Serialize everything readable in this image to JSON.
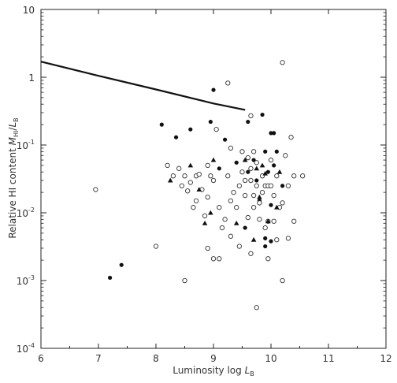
{
  "chart_data": {
    "type": "scatter",
    "title": "",
    "xlabel": {
      "text": "Luminosity log ",
      "var": "L",
      "sub": "B"
    },
    "ylabel": {
      "text": "Relative HI content ",
      "num": "M",
      "num_sub": "HI",
      "sep": "/",
      "den": "L",
      "den_sub": "B"
    },
    "xlim": [
      6,
      12
    ],
    "ylim_log10": [
      -4,
      1
    ],
    "y_scale": "log",
    "x_ticks": [
      "6",
      "7",
      "8",
      "9",
      "10",
      "11",
      "12"
    ],
    "y_ticks": [
      {
        "base": "10",
        "exp": ""
      },
      {
        "base": "1",
        "exp": ""
      },
      {
        "base": "10",
        "exp": "-1"
      },
      {
        "base": "10",
        "exp": "-2"
      },
      {
        "base": "10",
        "exp": "-3"
      },
      {
        "base": "10",
        "exp": "-4"
      }
    ],
    "grid": false,
    "line": {
      "points": [
        [
          6.0,
          1.7
        ],
        [
          7.0,
          1.05
        ],
        [
          8.0,
          0.66
        ],
        [
          9.0,
          0.41
        ],
        [
          9.55,
          0.33
        ]
      ]
    },
    "series": [
      {
        "marker": "filled-circle",
        "points": [
          [
            7.2,
            0.0011
          ],
          [
            7.4,
            0.0017
          ],
          [
            8.1,
            0.2
          ],
          [
            8.35,
            0.13
          ],
          [
            8.6,
            0.17
          ],
          [
            8.95,
            0.22
          ],
          [
            9.0,
            0.65
          ],
          [
            9.2,
            0.12
          ],
          [
            9.1,
            0.045
          ],
          [
            9.4,
            0.055
          ],
          [
            9.6,
            0.22
          ],
          [
            9.85,
            0.28
          ],
          [
            9.7,
            0.06
          ],
          [
            9.9,
            0.08
          ],
          [
            10.0,
            0.15
          ],
          [
            10.05,
            0.15
          ],
          [
            10.1,
            0.08
          ],
          [
            10.05,
            0.05
          ],
          [
            9.95,
            0.04
          ],
          [
            9.75,
            0.03
          ],
          [
            9.6,
            0.04
          ],
          [
            9.8,
            0.015
          ],
          [
            10.0,
            0.013
          ],
          [
            9.55,
            0.006
          ],
          [
            9.9,
            0.0042
          ],
          [
            10.0,
            0.0038
          ],
          [
            9.9,
            0.0032
          ],
          [
            10.2,
            0.025
          ]
        ]
      },
      {
        "marker": "open-circle",
        "points": [
          [
            6.95,
            0.022
          ],
          [
            8.0,
            0.0032
          ],
          [
            8.2,
            0.05
          ],
          [
            8.3,
            0.035
          ],
          [
            8.4,
            0.045
          ],
          [
            8.45,
            0.025
          ],
          [
            8.5,
            0.035
          ],
          [
            8.5,
            0.001
          ],
          [
            8.55,
            0.021
          ],
          [
            8.6,
            0.028
          ],
          [
            8.65,
            0.012
          ],
          [
            8.7,
            0.035
          ],
          [
            8.7,
            0.015
          ],
          [
            8.75,
            0.037
          ],
          [
            8.8,
            0.022
          ],
          [
            8.85,
            0.009
          ],
          [
            8.9,
            0.017
          ],
          [
            8.9,
            0.003
          ],
          [
            8.95,
            0.035
          ],
          [
            9.0,
            0.0021
          ],
          [
            9.0,
            0.03
          ],
          [
            9.05,
            0.17
          ],
          [
            9.1,
            0.012
          ],
          [
            9.1,
            0.0021
          ],
          [
            9.15,
            0.006
          ],
          [
            9.2,
            0.008
          ],
          [
            9.25,
            0.82
          ],
          [
            9.25,
            0.035
          ],
          [
            9.3,
            0.09
          ],
          [
            9.3,
            0.015
          ],
          [
            9.3,
            0.0045
          ],
          [
            9.35,
            0.02
          ],
          [
            9.4,
            0.012
          ],
          [
            9.45,
            0.025
          ],
          [
            9.45,
            0.0032
          ],
          [
            9.5,
            0.08
          ],
          [
            9.5,
            0.04
          ],
          [
            9.55,
            0.018
          ],
          [
            9.55,
            0.03
          ],
          [
            9.6,
            0.065
          ],
          [
            9.6,
            0.0085
          ],
          [
            9.65,
            0.27
          ],
          [
            9.65,
            0.045
          ],
          [
            9.65,
            0.0025
          ],
          [
            9.7,
            0.08
          ],
          [
            9.7,
            0.018
          ],
          [
            9.7,
            0.012
          ],
          [
            9.75,
            0.055
          ],
          [
            9.75,
            0.0004
          ],
          [
            9.75,
            0.025
          ],
          [
            9.8,
            0.008
          ],
          [
            9.8,
            0.014
          ],
          [
            9.85,
            0.02
          ],
          [
            9.85,
            0.035
          ],
          [
            9.9,
            0.025
          ],
          [
            9.9,
            0.006
          ],
          [
            9.95,
            0.025
          ],
          [
            9.95,
            0.0021
          ],
          [
            9.95,
            0.0075
          ],
          [
            10.0,
            0.025
          ],
          [
            10.0,
            0.06
          ],
          [
            10.05,
            0.018
          ],
          [
            10.05,
            0.0075
          ],
          [
            10.1,
            0.035
          ],
          [
            10.1,
            0.004
          ],
          [
            10.15,
            0.012
          ],
          [
            10.2,
            1.65
          ],
          [
            10.2,
            0.014
          ],
          [
            10.2,
            0.001
          ],
          [
            10.25,
            0.07
          ],
          [
            10.3,
            0.025
          ],
          [
            10.3,
            0.0042
          ],
          [
            10.35,
            0.13
          ],
          [
            10.4,
            0.035
          ],
          [
            10.4,
            0.0075
          ],
          [
            10.55,
            0.035
          ],
          [
            8.9,
            0.05
          ],
          [
            9.65,
            0.03
          ]
        ]
      },
      {
        "marker": "filled-triangle",
        "points": [
          [
            8.25,
            0.03
          ],
          [
            8.6,
            0.05
          ],
          [
            8.75,
            0.022
          ],
          [
            8.95,
            0.01
          ],
          [
            9.0,
            0.06
          ],
          [
            9.4,
            0.007
          ],
          [
            9.55,
            0.06
          ],
          [
            9.75,
            0.045
          ],
          [
            9.8,
            0.017
          ],
          [
            9.85,
            0.05
          ],
          [
            9.9,
            0.038
          ],
          [
            10.1,
            0.012
          ],
          [
            10.15,
            0.04
          ],
          [
            9.7,
            0.004
          ],
          [
            9.95,
            0.0075
          ],
          [
            8.85,
            0.007
          ]
        ]
      }
    ]
  }
}
